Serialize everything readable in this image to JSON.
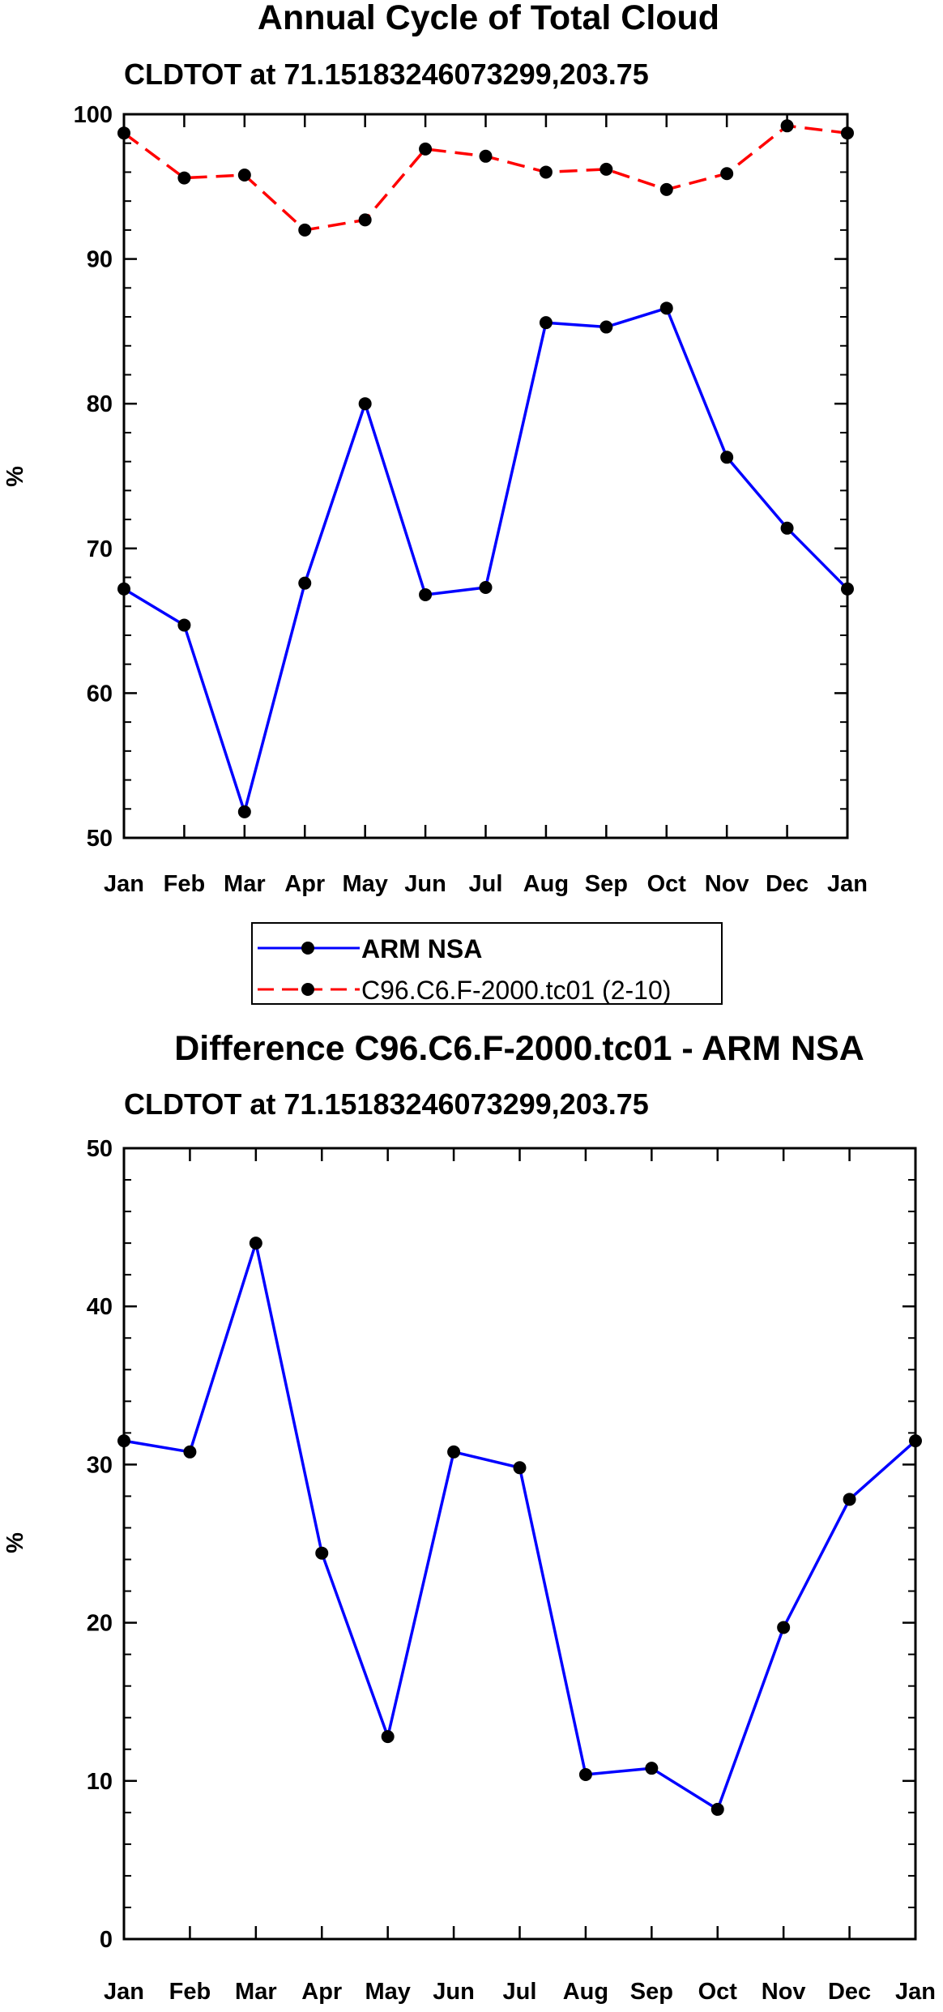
{
  "chart_data": [
    {
      "type": "line",
      "title": "Annual Cycle of Total Cloud",
      "subtitle": "CLDTOT at 71.15183246073299,203.75",
      "xlabel": "",
      "ylabel": "%",
      "categories": [
        "Jan",
        "Feb",
        "Mar",
        "Apr",
        "May",
        "Jun",
        "Jul",
        "Aug",
        "Sep",
        "Oct",
        "Nov",
        "Dec",
        "Jan"
      ],
      "ylim": [
        50,
        100
      ],
      "yticks": [
        "50",
        "60",
        "70",
        "80",
        "90",
        "100"
      ],
      "series": [
        {
          "name": "ARM NSA",
          "color": "#0000ff",
          "dash": "solid",
          "values": [
            67.2,
            64.7,
            51.8,
            67.6,
            80.0,
            66.8,
            67.3,
            85.6,
            85.3,
            86.6,
            76.3,
            71.4,
            67.2
          ]
        },
        {
          "name": "C96.C6.F-2000.tc01 (2-10)",
          "color": "#ff0000",
          "dash": "dashed",
          "values": [
            98.7,
            95.6,
            95.8,
            92.0,
            92.7,
            97.6,
            97.1,
            96.0,
            96.2,
            94.8,
            95.9,
            99.2,
            98.7
          ]
        }
      ],
      "legend": {
        "placement": "below",
        "entries": [
          "ARM NSA",
          "C96.C6.F-2000.tc01 (2-10)"
        ]
      }
    },
    {
      "type": "line",
      "title": "Difference C96.C6.F-2000.tc01 - ARM NSA",
      "subtitle": "CLDTOT at 71.15183246073299,203.75",
      "xlabel": "",
      "ylabel": "%",
      "categories": [
        "Jan",
        "Feb",
        "Mar",
        "Apr",
        "May",
        "Jun",
        "Jul",
        "Aug",
        "Sep",
        "Oct",
        "Nov",
        "Dec",
        "Jan"
      ],
      "ylim": [
        0,
        50
      ],
      "yticks": [
        "0",
        "10",
        "20",
        "30",
        "40",
        "50"
      ],
      "series": [
        {
          "name": "Difference",
          "color": "#0000ff",
          "dash": "solid",
          "values": [
            31.5,
            30.8,
            44.0,
            24.4,
            12.8,
            30.8,
            29.8,
            10.4,
            10.8,
            8.2,
            19.7,
            27.8,
            31.5
          ]
        }
      ]
    }
  ]
}
